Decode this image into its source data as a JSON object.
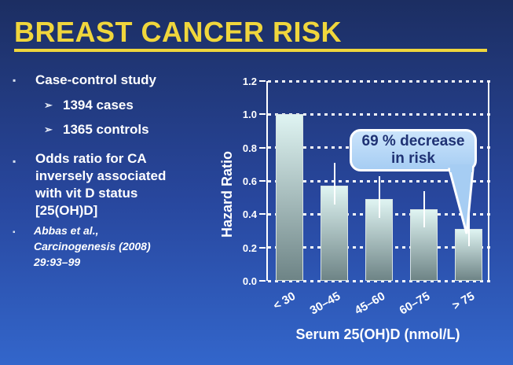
{
  "slide": {
    "title": "BREAST CANCER RISK",
    "colors": {
      "accent_yellow": "#F0D63C",
      "background_top": "#1C2E62",
      "background_bottom": "#3366CB",
      "text": "#FFFFFF"
    }
  },
  "bullets": {
    "square_glyph": "▪",
    "arrow_glyph": "➢",
    "item1": "Case-control study",
    "sub_items": [
      "1394 cases",
      "1365 controls"
    ],
    "item2": "Odds ratio for CA inversely associated with vit D status [25(OH)D]",
    "citation": "Abbas et al., Carcinogenesis (2008) 29:93–99"
  },
  "callout": {
    "line1": "69 % decrease",
    "line2": "in risk",
    "fill_top": "#CBE4FB",
    "fill_bottom": "#A6CDF3",
    "text_color": "#1F3274"
  },
  "chart_data": {
    "type": "bar",
    "title": "",
    "xlabel": "Serum 25(OH)D (nmol/L)",
    "ylabel": "Hazard Ratio",
    "categories": [
      "< 30",
      "30–45",
      "45–60",
      "60–75",
      "> 75"
    ],
    "values": [
      1.0,
      0.57,
      0.49,
      0.43,
      0.31
    ],
    "error_low": [
      null,
      0.46,
      0.38,
      0.32,
      0.21
    ],
    "error_high": [
      null,
      0.71,
      0.63,
      0.54,
      0.42
    ],
    "ylim": [
      0,
      1.2
    ],
    "yticks": [
      "0.0",
      "0.2",
      "0.4",
      "0.6",
      "0.8",
      "1.0",
      "1.2"
    ],
    "grid": "horizontal-dotted-white",
    "legend": null,
    "annotation": "69 % decrease in risk",
    "bar_color_top": "#DFF4F2",
    "bar_color_bottom": "#6E8486",
    "error_bar_color": "#FFFFFF"
  }
}
